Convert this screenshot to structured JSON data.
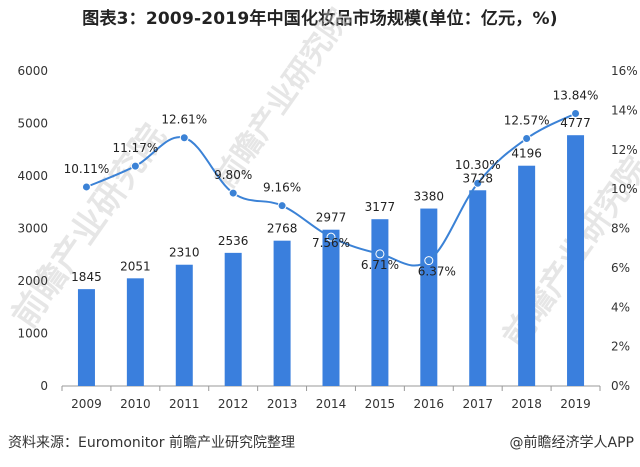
{
  "title": "图表3：2009-2019年中国化妆品市场规模(单位：亿元，%)",
  "footer": {
    "source": "资料来源：Euromonitor 前瞻产业研究院整理",
    "brand": "@前瞻经济学人APP"
  },
  "watermark": "前瞻产业研究院",
  "colors": {
    "bar": "#3a7fdd",
    "line": "#3b82d6",
    "axis": "#999999"
  },
  "chart_data": {
    "type": "bar",
    "categories": [
      "2009",
      "2010",
      "2011",
      "2012",
      "2013",
      "2014",
      "2015",
      "2016",
      "2017",
      "2018",
      "2019"
    ],
    "series": [
      {
        "type": "bar",
        "axis": "left",
        "values": [
          1845,
          2051,
          2310,
          2536,
          2768,
          2977,
          3177,
          3380,
          3728,
          4196,
          4777
        ]
      },
      {
        "type": "line",
        "axis": "right",
        "values": [
          10.11,
          11.17,
          12.61,
          9.8,
          9.16,
          7.56,
          6.71,
          6.37,
          10.3,
          12.57,
          13.84
        ]
      }
    ],
    "bar_labels": [
      "1845",
      "2051",
      "2310",
      "2536",
      "2768",
      "2977",
      "3177",
      "3380",
      "3728",
      "4196",
      "4777"
    ],
    "line_labels": [
      "10.11%",
      "11.17%",
      "12.61%",
      "9.80%",
      "9.16%",
      "7.56%",
      "6.71%",
      "6.37%",
      "10.30%",
      "12.57%",
      "13.84%"
    ],
    "ylim_left": [
      0,
      6000
    ],
    "yticks_left": [
      "0",
      "1000",
      "2000",
      "3000",
      "4000",
      "5000",
      "6000"
    ],
    "ylim_right": [
      0,
      16
    ],
    "yticks_right": [
      "0%",
      "2%",
      "4%",
      "6%",
      "8%",
      "10%",
      "12%",
      "14%",
      "16%"
    ]
  }
}
